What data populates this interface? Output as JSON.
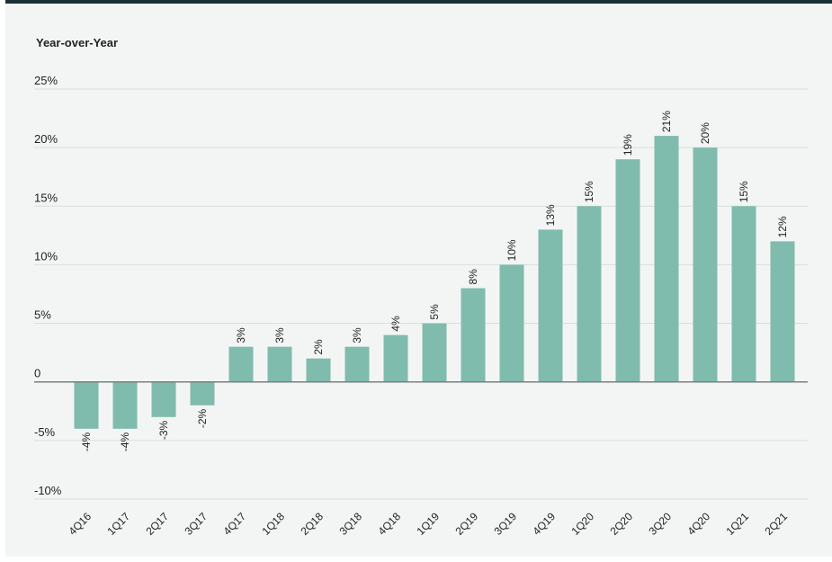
{
  "chart_data": {
    "type": "bar",
    "ylabel": "Year-over-Year",
    "title": "",
    "xlabel": "",
    "ylim": [
      -10,
      25
    ],
    "yticks": [
      25,
      20,
      15,
      10,
      5,
      0,
      -5,
      -10
    ],
    "ytick_labels": [
      "25%",
      "20%",
      "15%",
      "10%",
      "5%",
      "0",
      "-5%",
      "-10%"
    ],
    "categories": [
      "4Q16",
      "1Q17",
      "2Q17",
      "3Q17",
      "4Q17",
      "1Q18",
      "2Q18",
      "3Q18",
      "4Q18",
      "1Q19",
      "2Q19",
      "3Q19",
      "4Q19",
      "1Q20",
      "2Q20",
      "3Q20",
      "4Q20",
      "1Q21",
      "2Q21"
    ],
    "values": [
      -4,
      -4,
      -3,
      -2,
      3,
      3,
      2,
      3,
      4,
      5,
      8,
      10,
      13,
      15,
      19,
      21,
      20,
      15,
      12
    ],
    "data_labels": [
      "-4%",
      "-4%",
      "-3%",
      "-2%",
      "3%",
      "3%",
      "2%",
      "3%",
      "4%",
      "5%",
      "8%",
      "10%",
      "13%",
      "15%",
      "19%",
      "21%",
      "20%",
      "15%",
      "12%"
    ],
    "grid": true,
    "bar_color": "#7fbcad",
    "grid_color": "#d9dddd",
    "zero_line_color": "#7a7f7f"
  }
}
